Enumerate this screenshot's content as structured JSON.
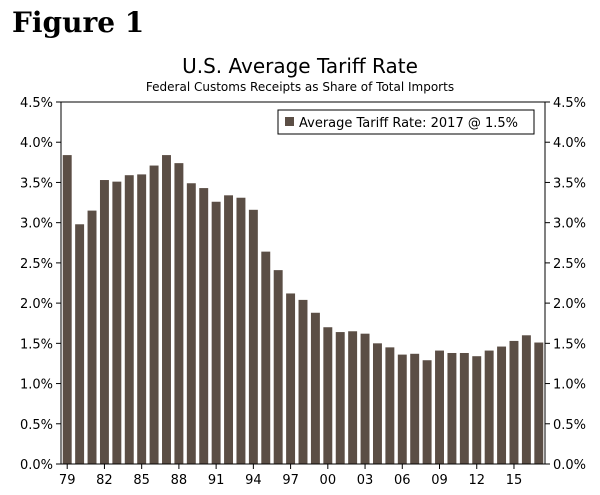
{
  "figure_label": "Figure 1",
  "colors": {
    "bar": "#5b4e45",
    "axis": "#000000",
    "background": "#ffffff"
  },
  "chart_data": {
    "type": "bar",
    "title": "U.S. Average Tariff Rate",
    "subtitle": "Federal Customs Receipts as Share of Total Imports",
    "legend": {
      "label": "Average Tariff Rate: 2017 @ 1.5%",
      "position": "top-right"
    },
    "xlabel": "",
    "ylabel": "",
    "ylim": [
      0,
      4.5
    ],
    "y_ticks": [
      "0.0%",
      "0.5%",
      "1.0%",
      "1.5%",
      "2.0%",
      "2.5%",
      "3.0%",
      "3.5%",
      "4.0%",
      "4.5%"
    ],
    "x_tick_labels": [
      "79",
      "82",
      "85",
      "88",
      "91",
      "94",
      "97",
      "00",
      "03",
      "06",
      "09",
      "12",
      "15"
    ],
    "categories": [
      "1979",
      "1980",
      "1981",
      "1982",
      "1983",
      "1984",
      "1985",
      "1986",
      "1987",
      "1988",
      "1989",
      "1990",
      "1991",
      "1992",
      "1993",
      "1994",
      "1995",
      "1996",
      "1997",
      "1998",
      "1999",
      "2000",
      "2001",
      "2002",
      "2003",
      "2004",
      "2005",
      "2006",
      "2007",
      "2008",
      "2009",
      "2010",
      "2011",
      "2012",
      "2013",
      "2014",
      "2015",
      "2016",
      "2017"
    ],
    "values": [
      3.84,
      2.98,
      3.15,
      3.53,
      3.51,
      3.59,
      3.6,
      3.71,
      3.84,
      3.74,
      3.49,
      3.43,
      3.26,
      3.34,
      3.31,
      3.16,
      2.64,
      2.41,
      2.12,
      2.04,
      1.88,
      1.7,
      1.64,
      1.65,
      1.62,
      1.5,
      1.45,
      1.36,
      1.37,
      1.29,
      1.41,
      1.38,
      1.38,
      1.34,
      1.41,
      1.46,
      1.53,
      1.6,
      1.51
    ]
  }
}
